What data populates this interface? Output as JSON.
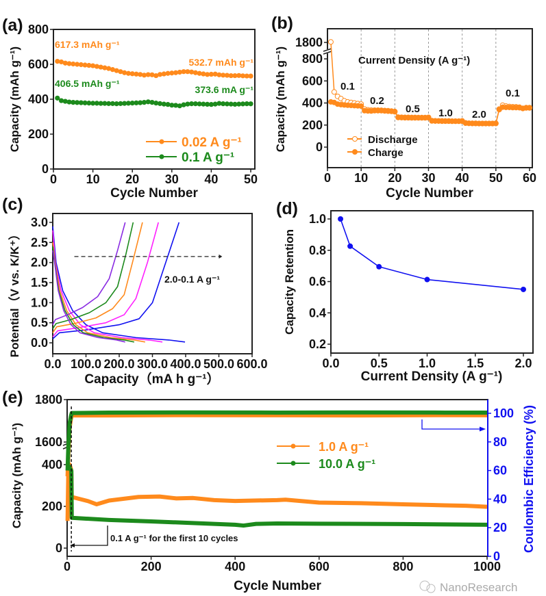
{
  "colors": {
    "orange": "#ff8a1c",
    "green": "#1c8a1c",
    "blue": "#1010f0",
    "magenta": "#ff20ff",
    "purple": "#8a2be2",
    "axis": "#222222"
  },
  "watermark": "NanoResearch",
  "chart_data": [
    {
      "panel_label": "(a)",
      "type": "line",
      "xlabel": "Cycle Number",
      "ylabel": "Capacity (mAh g⁻¹)",
      "xlim": [
        0,
        50
      ],
      "ylim": [
        0,
        800
      ],
      "xticks": [
        0,
        10,
        20,
        30,
        40,
        50
      ],
      "yticks": [
        0,
        200,
        400,
        600,
        800
      ],
      "series": [
        {
          "name": "0.02 A g⁻¹",
          "color": "#ff8a1c",
          "x_start": 1,
          "values": [
            617.3,
            614,
            607,
            604,
            602,
            600,
            598,
            596,
            594,
            592,
            588,
            584,
            580,
            576,
            570,
            564,
            558,
            552,
            548,
            546,
            544,
            542,
            538,
            541,
            540,
            535,
            542,
            545,
            548,
            550,
            552,
            555,
            558,
            558,
            556,
            552,
            548,
            545,
            542,
            543,
            544,
            540,
            538,
            537,
            535,
            535,
            536,
            534,
            533,
            532.7
          ]
        },
        {
          "name": "0.1 A g⁻¹",
          "color": "#1c8a1c",
          "x_start": 1,
          "values": [
            406.5,
            392,
            388,
            384,
            382,
            381,
            380,
            379,
            378,
            377,
            377,
            376,
            376,
            375,
            375,
            374,
            375,
            376,
            377,
            378,
            379,
            380,
            382,
            385,
            382,
            378,
            375,
            372,
            370,
            366,
            365,
            362,
            368,
            372,
            374,
            374,
            373,
            372,
            371,
            370,
            372,
            376,
            374,
            373,
            372,
            371,
            372,
            373,
            374,
            373.6
          ]
        }
      ],
      "annotations": [
        "617.3 mAh g⁻¹",
        "532.7 mAh g⁻¹",
        "406.5 mAh g⁻¹",
        "373.6 mA g⁻¹"
      ],
      "legend": "bottom-right"
    },
    {
      "panel_label": "(b)",
      "type": "line",
      "xlabel": "Cycle Number",
      "ylabel": "Capacity (mAh g⁻¹)",
      "xlim": [
        0,
        60
      ],
      "y_axis_break": [
        800,
        1800
      ],
      "xticks": [
        0,
        10,
        20,
        30,
        40,
        50,
        60
      ],
      "yticks": [
        0,
        200,
        400,
        600,
        800,
        1800
      ],
      "title_annotation": "Current Density (A g⁻¹)",
      "rate_labels": [
        "0.1",
        "0.2",
        "0.5",
        "1.0",
        "2.0",
        "0.1"
      ],
      "series": [
        {
          "name": "Discharge",
          "marker": "open-circle",
          "color": "#ff8a1c",
          "x_start": 1,
          "values": [
            1830,
            500,
            460,
            440,
            420,
            410,
            405,
            400,
            395,
            390,
            345,
            338,
            335,
            335,
            335,
            334,
            332,
            330,
            327,
            323,
            272,
            271,
            270,
            270,
            269,
            269,
            268,
            268,
            268,
            270,
            240,
            239,
            238,
            238,
            237,
            237,
            236,
            236,
            236,
            238,
            220,
            217,
            216,
            216,
            215,
            215,
            215,
            215,
            215,
            216,
            345,
            380,
            372,
            368,
            366,
            365,
            362,
            352,
            358,
            358
          ]
        },
        {
          "name": "Charge",
          "marker": "filled-circle",
          "color": "#ff8a1c",
          "x_start": 1,
          "values": [
            410,
            405,
            390,
            385,
            382,
            380,
            378,
            376,
            374,
            372,
            330,
            328,
            327,
            330,
            330,
            330,
            328,
            326,
            324,
            320,
            268,
            267,
            266,
            266,
            265,
            265,
            265,
            265,
            265,
            266,
            237,
            236,
            236,
            235,
            235,
            235,
            234,
            234,
            234,
            235,
            217,
            215,
            214,
            214,
            213,
            213,
            213,
            213,
            213,
            214,
            340,
            362,
            360,
            360,
            358,
            358,
            357,
            350,
            355,
            355
          ]
        }
      ],
      "legend": "bottom-left"
    },
    {
      "panel_label": "(c)",
      "type": "line",
      "xlabel": "Capacity（mA h g⁻¹）",
      "ylabel": "Potential（V vs. K/K⁺）",
      "xlim": [
        0,
        600
      ],
      "ylim": [
        -0.25,
        3.25
      ],
      "xticks": [
        0,
        100,
        200,
        300,
        400,
        500,
        600
      ],
      "yticks": [
        0.0,
        0.5,
        1.0,
        1.5,
        2.0,
        2.5,
        3.0
      ],
      "annotation": "2.0-0.1 A g⁻¹",
      "series": [
        {
          "color": "#1010f0",
          "charge": {
            "x": [
              0,
              20,
              100,
              200,
              260,
              300,
              340,
              380
            ],
            "y": [
              0.1,
              0.25,
              0.32,
              0.45,
              0.6,
              1.0,
              2.0,
              3.0
            ]
          },
          "discharge": {
            "x": [
              0,
              10,
              30,
              60,
              100,
              150,
              250,
              350,
              398
            ],
            "y": [
              2.9,
              2.0,
              1.3,
              0.8,
              0.45,
              0.25,
              0.13,
              0.07,
              0.02
            ]
          }
        },
        {
          "color": "#ff20ff",
          "charge": {
            "x": [
              0,
              15,
              80,
              160,
              215,
              250,
              285,
              318
            ],
            "y": [
              0.15,
              0.3,
              0.38,
              0.5,
              0.7,
              1.1,
              2.0,
              3.0
            ]
          },
          "discharge": {
            "x": [
              0,
              8,
              25,
              50,
              83,
              125,
              207,
              290,
              330
            ],
            "y": [
              2.8,
              2.0,
              1.3,
              0.8,
              0.45,
              0.25,
              0.13,
              0.07,
              0.02
            ]
          }
        },
        {
          "color": "#ff8a1c",
          "charge": {
            "x": [
              0,
              12,
              65,
              130,
              180,
              215,
              243,
              270
            ],
            "y": [
              0.25,
              0.4,
              0.48,
              0.62,
              0.85,
              1.2,
              2.1,
              3.0
            ]
          },
          "discharge": {
            "x": [
              0,
              7,
              21,
              42,
              70,
              105,
              175,
              245,
              278
            ],
            "y": [
              2.5,
              2.0,
              1.3,
              0.8,
              0.45,
              0.25,
              0.13,
              0.07,
              0.02
            ]
          }
        },
        {
          "color": "#1c8a1c",
          "charge": {
            "x": [
              0,
              10,
              55,
              110,
              160,
              195,
              220,
              242
            ],
            "y": [
              0.35,
              0.48,
              0.58,
              0.75,
              1.0,
              1.4,
              2.2,
              3.0
            ]
          },
          "discharge": {
            "x": [
              0,
              6,
              18,
              37,
              62,
              92,
              154,
              215,
              245
            ],
            "y": [
              2.4,
              2.0,
              1.3,
              0.8,
              0.45,
              0.25,
              0.13,
              0.07,
              0.02
            ]
          }
        },
        {
          "color": "#8a2be2",
          "charge": {
            "x": [
              0,
              8,
              45,
              90,
              135,
              170,
              195,
              218
            ],
            "y": [
              0.45,
              0.58,
              0.7,
              0.88,
              1.15,
              1.6,
              2.3,
              3.0
            ]
          },
          "discharge": {
            "x": [
              0,
              5.5,
              16.5,
              33,
              55,
              82,
              137,
              192,
              218
            ],
            "y": [
              2.3,
              2.0,
              1.3,
              0.8,
              0.45,
              0.25,
              0.13,
              0.07,
              0.02
            ]
          }
        }
      ]
    },
    {
      "panel_label": "(d)",
      "type": "line",
      "xlabel": "Current Density (A g⁻¹)",
      "ylabel": "Capacity Retention",
      "xlim": [
        0,
        2.1
      ],
      "ylim": [
        0.15,
        1.05
      ],
      "xticks": [
        0.0,
        0.5,
        1.0,
        1.5,
        2.0
      ],
      "yticks": [
        0.2,
        0.4,
        0.6,
        0.8,
        1.0
      ],
      "series": [
        {
          "color": "#1010f0",
          "x": [
            0.1,
            0.2,
            0.5,
            1.0,
            2.0
          ],
          "y": [
            1.0,
            0.826,
            0.695,
            0.613,
            0.55
          ]
        }
      ]
    },
    {
      "panel_label": "(e)",
      "type": "line",
      "xlabel": "Cycle Number",
      "ylabel": "Capacity (mAh g⁻¹)",
      "y2label": "Coulombic Efficiency (%)",
      "xlim": [
        0,
        1000
      ],
      "y_axis_break": [
        400,
        1600
      ],
      "y2lim": [
        0,
        110
      ],
      "xticks": [
        0,
        200,
        400,
        600,
        800,
        1000
      ],
      "yticks": [
        0,
        200,
        400,
        1600,
        1800
      ],
      "y2ticks": [
        0,
        20,
        40,
        60,
        80,
        100
      ],
      "annotation": "0.1 A g⁻¹ for the first 10 cycles",
      "series": [
        {
          "name": "1.0   A g⁻¹",
          "color": "#ff8a1c",
          "capacity": {
            "x": [
              1,
              3,
              6,
              9,
              10,
              11,
              50,
              70,
              100,
              170,
              220,
              260,
              300,
              350,
              400,
              500,
              520,
              600,
              700,
              800,
              900,
              950,
              1000
            ],
            "y": [
              130,
              390,
              400,
              380,
              370,
              245,
              225,
              210,
              228,
              245,
              247,
              238,
              240,
              230,
              226,
              230,
              232,
              218,
              215,
              210,
              205,
              203,
              198
            ]
          },
          "ce": {
            "x": [
              1,
              3,
              6,
              9,
              11,
              100,
              300,
              500,
              700,
              900,
              1000
            ],
            "y": [
              56,
              72,
              90,
              96,
              98.5,
              98.5,
              98.7,
              98.6,
              98.5,
              98.7,
              98.6
            ]
          }
        },
        {
          "name": "10.0 A g⁻¹",
          "color": "#1c8a1c",
          "capacity": {
            "x": [
              1,
              3,
              6,
              9,
              10,
              11,
              100,
              200,
              300,
              400,
              420,
              450,
              500,
              600,
              800,
              1000
            ],
            "y": [
              400,
              395,
              385,
              375,
              370,
              145,
              135,
              128,
              120,
              112,
              108,
              116,
              118,
              117,
              115,
              112
            ]
          },
          "ce": {
            "x": [
              1,
              3,
              6,
              9,
              11,
              100,
              300,
              500,
              700,
              900,
              1000
            ],
            "y": [
              60,
              78,
              93,
              98,
              100.2,
              100.5,
              100.6,
              100.5,
              100.6,
              100.5,
              100.5
            ]
          }
        }
      ],
      "legend": "center-right"
    }
  ]
}
